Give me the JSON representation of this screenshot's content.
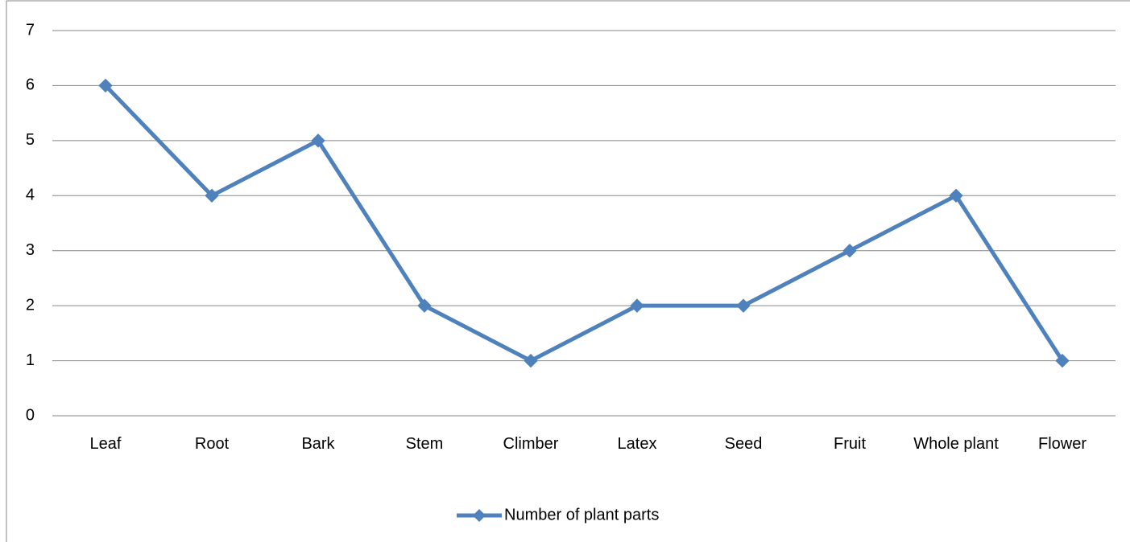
{
  "chart_data": {
    "type": "line",
    "categories": [
      "Leaf",
      "Root",
      "Bark",
      "Stem",
      "Climber",
      "Latex",
      "Seed",
      "Fruit",
      "Whole plant",
      "Flower"
    ],
    "series": [
      {
        "name": "Number of plant parts",
        "color": "#4f81bd",
        "values": [
          6,
          4,
          5,
          2,
          1,
          2,
          2,
          3,
          4,
          1
        ]
      }
    ],
    "ylim": [
      0,
      7
    ],
    "yticks": [
      0,
      1,
      2,
      3,
      4,
      5,
      6,
      7
    ],
    "grid": true,
    "legend": "bottom"
  }
}
